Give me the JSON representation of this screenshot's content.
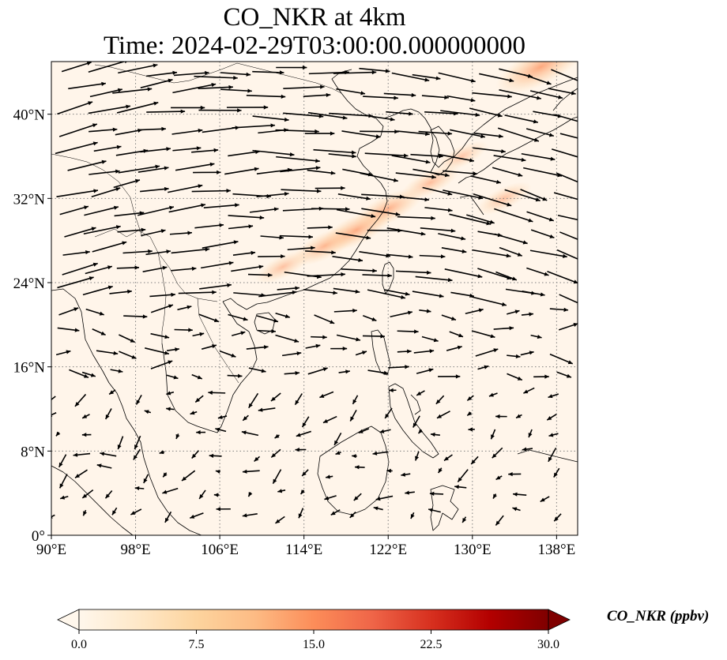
{
  "title": {
    "line1": "CO_NKR at 4km",
    "line2": "Time: 2024-02-29T03:00:00.000000000"
  },
  "map": {
    "projection": "PlateCarree",
    "lon_range": [
      90,
      140
    ],
    "lat_range": [
      0,
      45
    ],
    "gridlines": "dotted",
    "lon_ticks": [
      {
        "value": 90,
        "label": "90°E"
      },
      {
        "value": 98,
        "label": "98°E"
      },
      {
        "value": 106,
        "label": "106°E"
      },
      {
        "value": 114,
        "label": "114°E"
      },
      {
        "value": 122,
        "label": "122°E"
      },
      {
        "value": 130,
        "label": "130°E"
      },
      {
        "value": 138,
        "label": "138°E"
      }
    ],
    "lat_ticks": [
      {
        "value": 0,
        "label": "0°"
      },
      {
        "value": 8,
        "label": "8°N"
      },
      {
        "value": 16,
        "label": "16°N"
      },
      {
        "value": 24,
        "label": "24°N"
      },
      {
        "value": 32,
        "label": "32°N"
      },
      {
        "value": 40,
        "label": "40°N"
      }
    ],
    "field": "CO_NKR",
    "overlay": "wind vectors",
    "plume_path": [
      {
        "lon": 112,
        "lat": 25.5,
        "value": 6
      },
      {
        "lon": 116,
        "lat": 27.5,
        "value": 9
      },
      {
        "lon": 119,
        "lat": 29,
        "value": 11
      },
      {
        "lon": 122,
        "lat": 31,
        "value": 10
      },
      {
        "lon": 126,
        "lat": 33.5,
        "value": 7
      },
      {
        "lon": 129,
        "lat": 36,
        "value": 5
      },
      {
        "lon": 133,
        "lat": 32,
        "value": 6
      },
      {
        "lon": 136.5,
        "lat": 44.5,
        "value": 16
      }
    ]
  },
  "colorbar": {
    "label": "CO_NKR (ppbv)",
    "min": 0.0,
    "max": 30.0,
    "extend": "both",
    "cmap": "OrRd",
    "ticks": [
      {
        "value": 0,
        "label": "0.0"
      },
      {
        "value": 7.5,
        "label": "7.5"
      },
      {
        "value": 15,
        "label": "15.0"
      },
      {
        "value": 22.5,
        "label": "22.5"
      },
      {
        "value": 30,
        "label": "30.0"
      }
    ],
    "colors": [
      "#fff7ec",
      "#fee8c8",
      "#fdd49e",
      "#fdbb84",
      "#fc8d59",
      "#ef6548",
      "#d7301f",
      "#b30000",
      "#7f0000"
    ]
  },
  "colors": {
    "background_field": "#fff5ea",
    "coastline": "#000000",
    "gridline": "#808080",
    "vector": "#000000"
  }
}
